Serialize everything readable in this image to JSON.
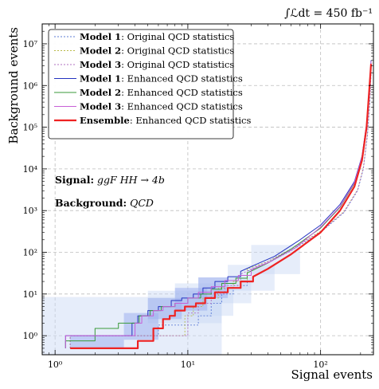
{
  "chart_data": {
    "type": "line",
    "xlabel": "Signal events",
    "ylabel": "Background events",
    "luminosity": "∫ℒdt = 450 fb⁻¹",
    "xscale": "log",
    "yscale": "log",
    "xlim": [
      0.8,
      250
    ],
    "ylim": [
      0.35,
      30000000
    ],
    "grid": true,
    "legend_position": "top-left",
    "x_ticks": [
      {
        "v": 1,
        "label": "10⁰"
      },
      {
        "v": 10,
        "label": "10¹"
      },
      {
        "v": 100,
        "label": "10²"
      }
    ],
    "y_ticks": [
      {
        "v": 1,
        "label": "10⁰"
      },
      {
        "v": 10,
        "label": "10¹"
      },
      {
        "v": 100,
        "label": "10²"
      },
      {
        "v": 1000,
        "label": "10³"
      },
      {
        "v": 10000,
        "label": "10⁴"
      },
      {
        "v": 100000,
        "label": "10⁵"
      },
      {
        "v": 1000000,
        "label": "10⁶"
      },
      {
        "v": 10000000,
        "label": "10⁷"
      }
    ],
    "annotations": [
      {
        "bold": "Signal:",
        "text": " ggF HH → 4b"
      },
      {
        "bold": "Background:",
        "text": " QCD"
      }
    ],
    "bands": [
      {
        "color": "#c7d8f5",
        "opacity": 0.45,
        "boxes": [
          [
            0.8,
            18,
            0.35,
            8.5
          ],
          [
            5,
            18,
            2,
            12
          ],
          [
            8,
            22,
            3,
            18
          ],
          [
            12,
            30,
            6,
            25
          ],
          [
            20,
            45,
            12,
            50
          ],
          [
            30,
            70,
            30,
            150
          ]
        ]
      },
      {
        "color": "#9fb0ee",
        "opacity": 0.55,
        "boxes": [
          [
            1.3,
            3.3,
            0.5,
            1.0
          ],
          [
            3.3,
            6,
            0.8,
            3.5
          ],
          [
            5,
            9,
            2.5,
            8
          ],
          [
            8,
            14,
            4,
            14
          ],
          [
            12,
            20,
            8,
            25
          ]
        ]
      }
    ],
    "series": [
      {
        "name": "Model 1",
        "suffix": ": Original QCD statistics",
        "color": "#5b7bd6",
        "dash": "2,2",
        "width": 0.9,
        "points": [
          [
            1.3,
            0.5
          ],
          [
            1.3,
            1
          ],
          [
            6,
            1
          ],
          [
            6,
            1.8
          ],
          [
            12,
            1.8
          ],
          [
            12,
            3
          ],
          [
            15,
            3
          ],
          [
            15,
            6
          ],
          [
            18,
            6
          ],
          [
            18,
            10
          ],
          [
            22,
            10
          ],
          [
            22,
            16
          ],
          [
            28,
            16
          ],
          [
            28,
            35
          ],
          [
            40,
            55
          ],
          [
            60,
            110
          ],
          [
            100,
            300
          ],
          [
            150,
            900
          ],
          [
            190,
            3000
          ],
          [
            210,
            10000
          ],
          [
            225,
            60000
          ],
          [
            235,
            400000
          ],
          [
            240,
            2000000
          ]
        ]
      },
      {
        "name": "Model 2",
        "suffix": ": Original QCD statistics",
        "color": "#b9b94a",
        "dash": "2,2",
        "width": 0.9,
        "points": [
          [
            1.3,
            0.5
          ],
          [
            1.3,
            1
          ],
          [
            9.5,
            1
          ],
          [
            9.5,
            3
          ],
          [
            11,
            3
          ],
          [
            11,
            5
          ],
          [
            13,
            5
          ],
          [
            13,
            8
          ],
          [
            17,
            8
          ],
          [
            17,
            14
          ],
          [
            22,
            14
          ],
          [
            22,
            20
          ],
          [
            28,
            20
          ],
          [
            28,
            40
          ],
          [
            40,
            60
          ],
          [
            60,
            120
          ],
          [
            100,
            320
          ],
          [
            150,
            950
          ],
          [
            190,
            3200
          ],
          [
            210,
            11000
          ],
          [
            225,
            65000
          ],
          [
            235,
            420000
          ],
          [
            240,
            2200000
          ]
        ]
      },
      {
        "name": "Model 3",
        "suffix": ": Original QCD statistics",
        "color": "#b06fc0",
        "dash": "2,2",
        "width": 0.9,
        "points": [
          [
            1.3,
            0.5
          ],
          [
            1.3,
            1
          ],
          [
            10,
            1
          ],
          [
            10,
            3.5
          ],
          [
            12,
            3.5
          ],
          [
            12,
            6
          ],
          [
            15,
            6
          ],
          [
            15,
            10
          ],
          [
            19,
            10
          ],
          [
            19,
            16
          ],
          [
            25,
            16
          ],
          [
            25,
            30
          ],
          [
            40,
            60
          ],
          [
            60,
            120
          ],
          [
            100,
            310
          ],
          [
            150,
            920
          ],
          [
            190,
            3100
          ],
          [
            210,
            10500
          ],
          [
            225,
            62000
          ],
          [
            235,
            410000
          ],
          [
            240,
            2100000
          ]
        ]
      },
      {
        "name": "Model 1",
        "suffix": ": Enhanced QCD statistics",
        "color": "#2433c0",
        "dash": "",
        "width": 1.0,
        "points": [
          [
            1.2,
            0.5
          ],
          [
            1.2,
            1
          ],
          [
            3.8,
            1
          ],
          [
            3.8,
            2
          ],
          [
            4.2,
            2
          ],
          [
            4.2,
            3
          ],
          [
            5,
            3
          ],
          [
            5,
            4
          ],
          [
            6,
            4
          ],
          [
            6,
            5
          ],
          [
            7.5,
            5
          ],
          [
            7.5,
            7
          ],
          [
            9,
            7
          ],
          [
            9,
            8
          ],
          [
            11,
            8
          ],
          [
            11,
            10
          ],
          [
            13,
            10
          ],
          [
            13,
            14
          ],
          [
            16,
            14
          ],
          [
            16,
            20
          ],
          [
            20,
            20
          ],
          [
            20,
            26
          ],
          [
            25,
            26
          ],
          [
            25,
            35
          ],
          [
            32,
            50
          ],
          [
            45,
            80
          ],
          [
            70,
            200
          ],
          [
            100,
            450
          ],
          [
            140,
            1400
          ],
          [
            180,
            5000
          ],
          [
            205,
            20000
          ],
          [
            222,
            120000
          ],
          [
            232,
            800000
          ],
          [
            240,
            4000000
          ]
        ]
      },
      {
        "name": "Model 2",
        "suffix": ": Enhanced QCD statistics",
        "color": "#3a9a3a",
        "dash": "",
        "width": 1.0,
        "points": [
          [
            1.2,
            0.5
          ],
          [
            1.2,
            0.75
          ],
          [
            2,
            0.75
          ],
          [
            2,
            1.5
          ],
          [
            3,
            1.5
          ],
          [
            3,
            2
          ],
          [
            4.3,
            2
          ],
          [
            4.3,
            3
          ],
          [
            5.2,
            3
          ],
          [
            5.2,
            4
          ],
          [
            6.3,
            4
          ],
          [
            6.3,
            5
          ],
          [
            8,
            5
          ],
          [
            8,
            6
          ],
          [
            10,
            6
          ],
          [
            10,
            8
          ],
          [
            12.5,
            8
          ],
          [
            12.5,
            10
          ],
          [
            15,
            10
          ],
          [
            15,
            13
          ],
          [
            18,
            13
          ],
          [
            18,
            18
          ],
          [
            23,
            18
          ],
          [
            23,
            24
          ],
          [
            28,
            24
          ],
          [
            28,
            32
          ],
          [
            40,
            55
          ],
          [
            60,
            120
          ],
          [
            100,
            380
          ],
          [
            140,
            1200
          ],
          [
            180,
            4500
          ],
          [
            205,
            18000
          ],
          [
            222,
            110000
          ],
          [
            232,
            750000
          ],
          [
            240,
            3500000
          ]
        ]
      },
      {
        "name": "Model 3",
        "suffix": ": Enhanced QCD statistics",
        "color": "#c75fd6",
        "dash": "",
        "width": 1.0,
        "points": [
          [
            1.2,
            0.5
          ],
          [
            1.2,
            1
          ],
          [
            4,
            1
          ],
          [
            4,
            2
          ],
          [
            4.5,
            2
          ],
          [
            4.5,
            3
          ],
          [
            5.5,
            3
          ],
          [
            5.5,
            4
          ],
          [
            6.5,
            4
          ],
          [
            6.5,
            5
          ],
          [
            8,
            5
          ],
          [
            8,
            6
          ],
          [
            10,
            6
          ],
          [
            10,
            8
          ],
          [
            12,
            8
          ],
          [
            12,
            11
          ],
          [
            15,
            11
          ],
          [
            15,
            15
          ],
          [
            19,
            15
          ],
          [
            19,
            21
          ],
          [
            24,
            21
          ],
          [
            24,
            28
          ],
          [
            30,
            28
          ],
          [
            30,
            38
          ],
          [
            42,
            60
          ],
          [
            65,
            130
          ],
          [
            100,
            400
          ],
          [
            140,
            1250
          ],
          [
            180,
            4700
          ],
          [
            205,
            19000
          ],
          [
            222,
            115000
          ],
          [
            232,
            780000
          ],
          [
            240,
            3800000
          ]
        ]
      },
      {
        "name": "Ensemble",
        "suffix": ": Enhanced QCD statistics",
        "color": "#ee2222",
        "dash": "",
        "width": 2.2,
        "points": [
          [
            1.3,
            0.5
          ],
          [
            4.2,
            0.5
          ],
          [
            4.2,
            0.75
          ],
          [
            5.5,
            0.75
          ],
          [
            5.5,
            1.5
          ],
          [
            6.5,
            1.5
          ],
          [
            6.5,
            2.5
          ],
          [
            7.3,
            2.5
          ],
          [
            7.3,
            3
          ],
          [
            8,
            3
          ],
          [
            8,
            4
          ],
          [
            9.5,
            4
          ],
          [
            9.5,
            5
          ],
          [
            11.5,
            5
          ],
          [
            11.5,
            6
          ],
          [
            13.5,
            6
          ],
          [
            13.5,
            8
          ],
          [
            16,
            8
          ],
          [
            16,
            11
          ],
          [
            20,
            11
          ],
          [
            20,
            14
          ],
          [
            25,
            14
          ],
          [
            25,
            20
          ],
          [
            31,
            20
          ],
          [
            31,
            26
          ],
          [
            40,
            40
          ],
          [
            60,
            90
          ],
          [
            100,
            300
          ],
          [
            140,
            1000
          ],
          [
            180,
            3800
          ],
          [
            205,
            16000
          ],
          [
            222,
            100000
          ],
          [
            232,
            700000
          ],
          [
            240,
            3300000
          ]
        ]
      }
    ]
  }
}
